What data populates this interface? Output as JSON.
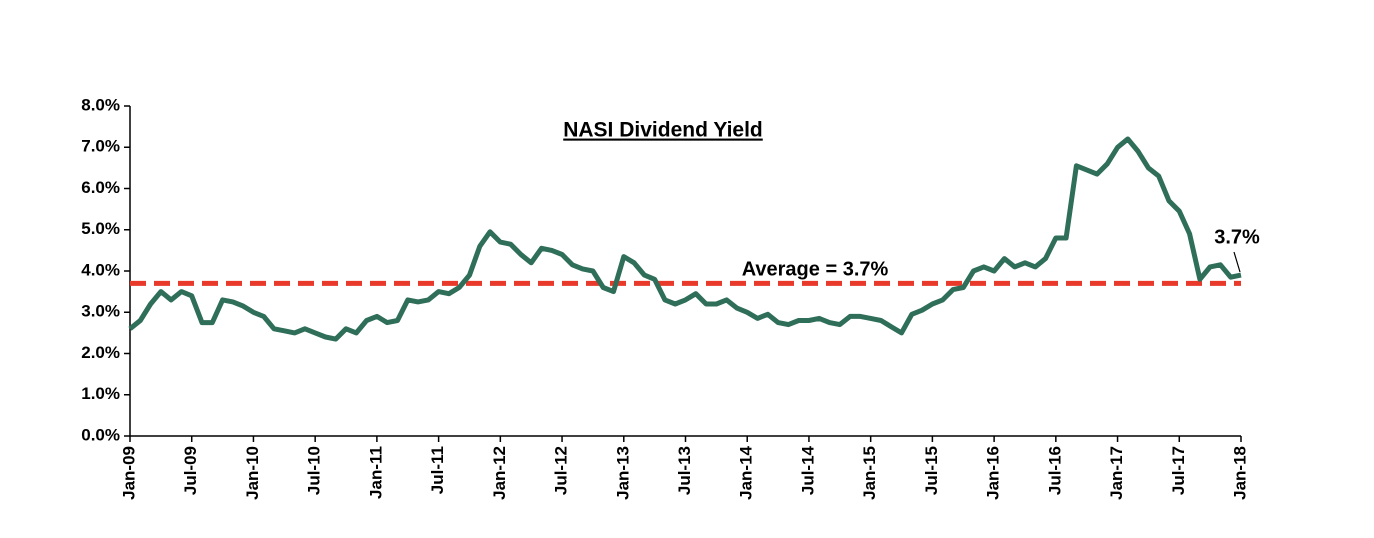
{
  "chart_data": {
    "type": "line",
    "title": "NASI Dividend Yield",
    "categories": [
      "Jan-09",
      null,
      null,
      null,
      null,
      null,
      "Jul-09",
      null,
      null,
      null,
      null,
      null,
      "Jan-10",
      null,
      null,
      null,
      null,
      null,
      "Jul-10",
      null,
      null,
      null,
      null,
      null,
      "Jan-11",
      null,
      null,
      null,
      null,
      null,
      "Jul-11",
      null,
      null,
      null,
      null,
      null,
      "Jan-12",
      null,
      null,
      null,
      null,
      null,
      "Jul-12",
      null,
      null,
      null,
      null,
      null,
      "Jan-13",
      null,
      null,
      null,
      null,
      null,
      "Jul-13",
      null,
      null,
      null,
      null,
      null,
      "Jan-14",
      null,
      null,
      null,
      null,
      null,
      "Jul-14",
      null,
      null,
      null,
      null,
      null,
      "Jan-15",
      null,
      null,
      null,
      null,
      null,
      "Jul-15",
      null,
      null,
      null,
      null,
      null,
      "Jan-16",
      null,
      null,
      null,
      null,
      null,
      "Jul-16",
      null,
      null,
      null,
      null,
      null,
      "Jan-17",
      null,
      null,
      null,
      null,
      null,
      "Jul-17",
      null,
      null,
      null,
      null,
      null,
      "Jan-18"
    ],
    "series": [
      {
        "name": "NASI Dividend Yield",
        "color": "#2f6e58",
        "values": [
          2.6,
          2.8,
          3.2,
          3.5,
          3.3,
          3.5,
          3.4,
          2.75,
          2.75,
          3.3,
          3.25,
          3.15,
          3.0,
          2.9,
          2.6,
          2.55,
          2.5,
          2.6,
          2.5,
          2.4,
          2.35,
          2.6,
          2.5,
          2.8,
          2.9,
          2.75,
          2.8,
          3.3,
          3.25,
          3.3,
          3.5,
          3.45,
          3.6,
          3.9,
          4.6,
          4.95,
          4.7,
          4.65,
          4.4,
          4.2,
          4.55,
          4.5,
          4.4,
          4.15,
          4.05,
          4.0,
          3.6,
          3.5,
          4.35,
          4.2,
          3.9,
          3.8,
          3.3,
          3.2,
          3.3,
          3.45,
          3.2,
          3.2,
          3.3,
          3.1,
          3.0,
          2.85,
          2.95,
          2.75,
          2.7,
          2.8,
          2.8,
          2.85,
          2.75,
          2.7,
          2.9,
          2.9,
          2.85,
          2.8,
          2.65,
          2.5,
          2.95,
          3.05,
          3.2,
          3.3,
          3.55,
          3.6,
          4.0,
          4.1,
          4.0,
          4.3,
          4.1,
          4.2,
          4.1,
          4.3,
          4.8,
          4.8,
          6.55,
          6.45,
          6.35,
          6.6,
          7.0,
          7.2,
          6.9,
          6.5,
          6.3,
          5.7,
          5.45,
          4.9,
          3.8,
          4.1,
          4.15,
          3.85,
          3.9
        ]
      }
    ],
    "average": {
      "value": 3.7,
      "color": "#e8392b",
      "label": "Average = 3.7%"
    },
    "annotations": [
      "3.7%"
    ],
    "ylim": [
      0,
      8
    ],
    "yticks": [
      {
        "value": 0,
        "label": "0.0%"
      },
      {
        "value": 1,
        "label": "1.0%"
      },
      {
        "value": 2,
        "label": "2.0%"
      },
      {
        "value": 3,
        "label": "3.0%"
      },
      {
        "value": 4,
        "label": "4.0%"
      },
      {
        "value": 5,
        "label": "5.0%"
      },
      {
        "value": 6,
        "label": "6.0%"
      },
      {
        "value": 7,
        "label": "7.0%"
      },
      {
        "value": 8,
        "label": "8.0%"
      }
    ],
    "grid": false
  }
}
